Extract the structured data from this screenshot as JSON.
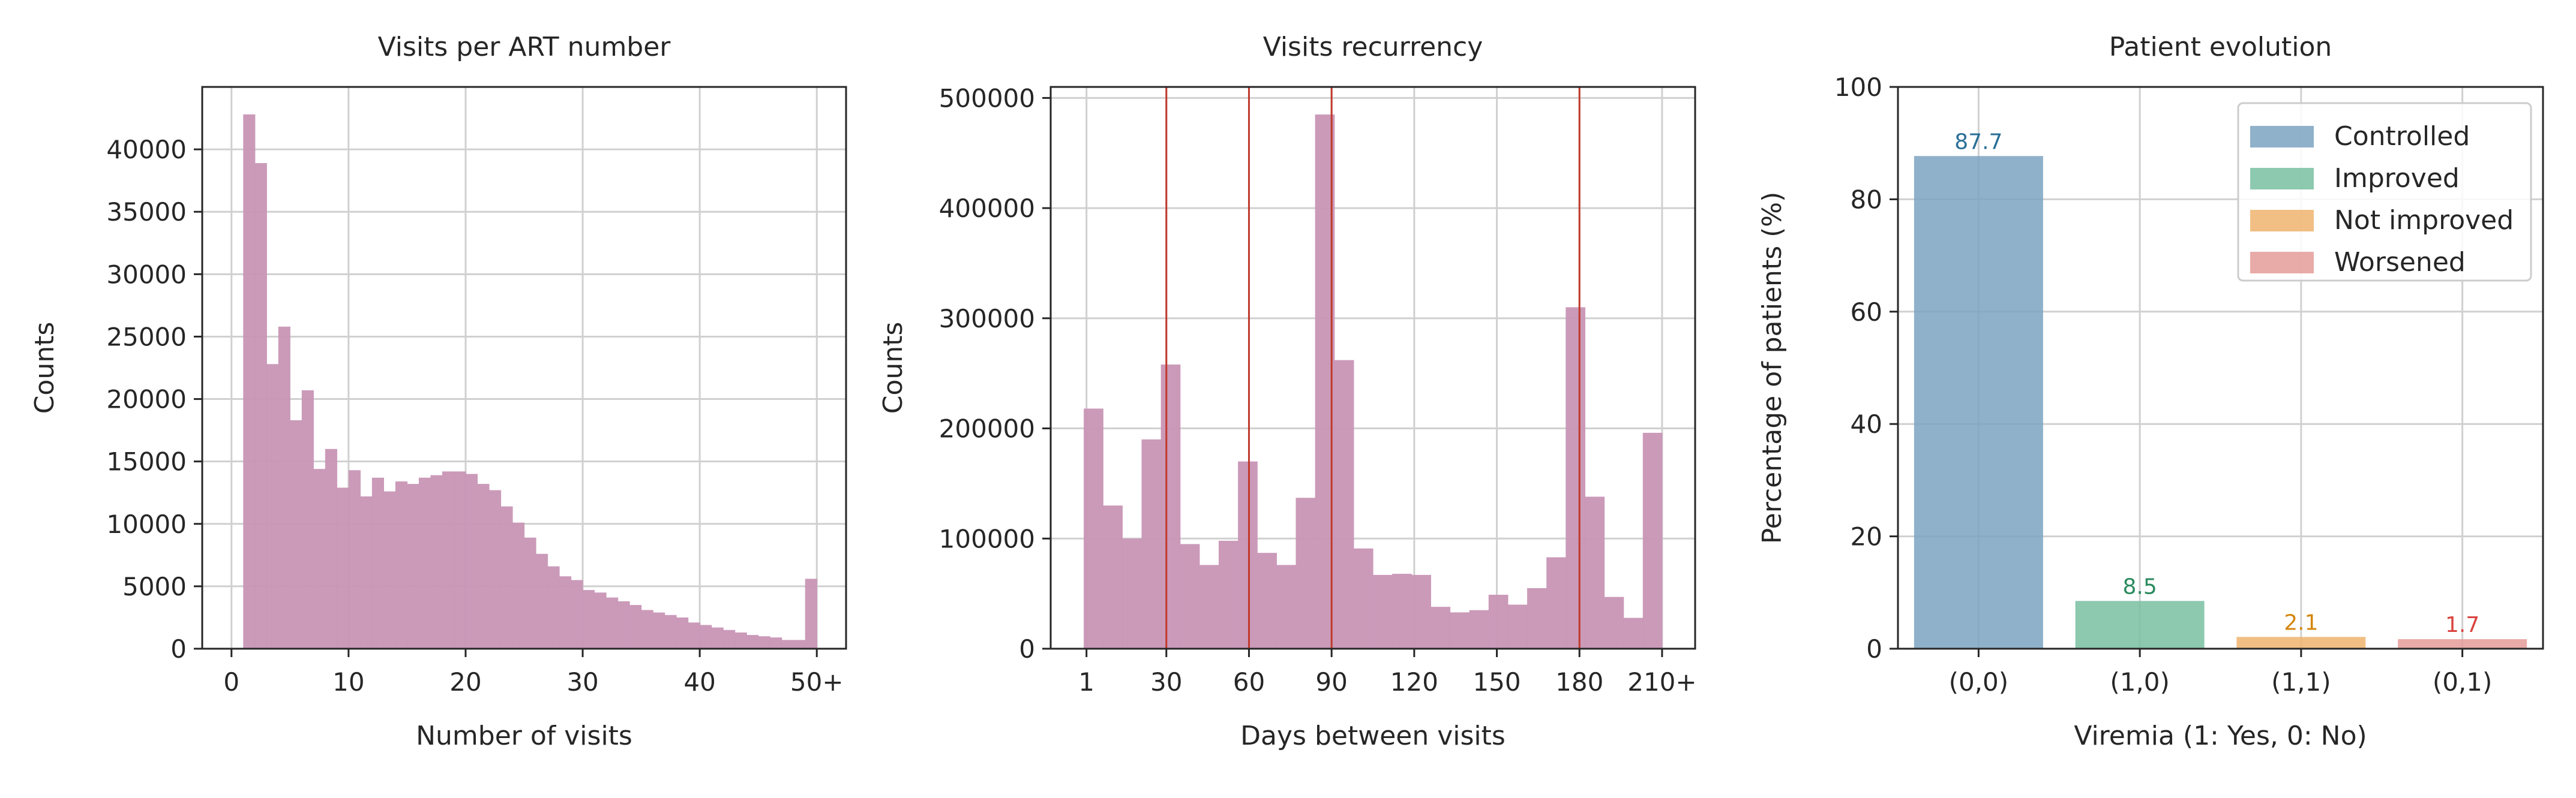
{
  "chart_data": [
    {
      "type": "bar",
      "title": "Visits per ART number",
      "xlabel": "Number of visits",
      "ylabel": "Counts",
      "xlim": [
        -2.5,
        52.5
      ],
      "ylim": [
        0,
        45000
      ],
      "xticks": [
        0,
        10,
        20,
        30,
        40,
        50
      ],
      "xtick_labels": [
        "0",
        "10",
        "20",
        "30",
        "40",
        "50+"
      ],
      "yticks": [
        0,
        5000,
        10000,
        15000,
        20000,
        25000,
        30000,
        35000,
        40000
      ],
      "grid": true,
      "bar_color": "#c895b5",
      "x_start": 1,
      "bin_width": 1,
      "values": [
        42800,
        38900,
        22800,
        25800,
        18300,
        20700,
        14400,
        16000,
        12900,
        14300,
        12200,
        13700,
        12600,
        13400,
        13200,
        13700,
        13900,
        14200,
        14200,
        14000,
        13200,
        12700,
        11400,
        10100,
        8900,
        7600,
        6600,
        5800,
        5500,
        4700,
        4500,
        4100,
        3800,
        3500,
        3100,
        2900,
        2700,
        2500,
        2100,
        1900,
        1700,
        1500,
        1300,
        1100,
        1000,
        900,
        700,
        700,
        5600
      ]
    },
    {
      "type": "bar",
      "title": "Visits recurrency",
      "xlabel": "Days between visits",
      "ylabel": "Counts",
      "xlim": [
        -12,
        222
      ],
      "ylim": [
        0,
        510000
      ],
      "xticks": [
        1,
        30,
        60,
        90,
        120,
        150,
        180,
        210
      ],
      "xtick_labels": [
        "1",
        "30",
        "60",
        "90",
        "120",
        "150",
        "180",
        "210+"
      ],
      "yticks": [
        0,
        100000,
        200000,
        300000,
        400000,
        500000
      ],
      "grid": true,
      "bar_color": "#c895b5",
      "vlines": [
        30,
        60,
        90,
        180
      ],
      "vline_color": "#c0392b",
      "x_start": 0,
      "bin_width": 7,
      "values": [
        218000,
        130000,
        100000,
        190000,
        258000,
        95000,
        76000,
        98000,
        170000,
        87000,
        76000,
        137000,
        485000,
        262000,
        91000,
        67000,
        68000,
        67000,
        38000,
        33000,
        35000,
        49000,
        40000,
        55000,
        83000,
        310000,
        138000,
        47000,
        28000,
        196000
      ]
    },
    {
      "type": "bar",
      "title": "Patient evolution",
      "xlabel": "Viremia (1: Yes, 0: No)",
      "ylabel": "Percentage of patients (%)",
      "ylim": [
        0,
        100
      ],
      "yticks": [
        0,
        20,
        40,
        60,
        80,
        100
      ],
      "grid": true,
      "legend": "top-right",
      "categories": [
        "(0,0)",
        "(1,0)",
        "(1,1)",
        "(0,1)"
      ],
      "series": [
        {
          "name": "Controlled",
          "values": [
            87.7,
            0,
            0,
            0
          ],
          "label": "87.7",
          "color": "#7ba3c1",
          "label_color": "#2a6f97"
        },
        {
          "name": "Improved",
          "values": [
            0,
            8.5,
            0,
            0
          ],
          "label": "8.5",
          "color": "#79bfa1",
          "label_color": "#2a8a5e"
        },
        {
          "name": "Not improved",
          "values": [
            0,
            0,
            2.1,
            0
          ],
          "label": "2.1",
          "color": "#eeb46f",
          "label_color": "#d4860c"
        },
        {
          "name": "Worsened",
          "values": [
            0,
            0,
            0,
            1.7
          ],
          "label": "1.7",
          "color": "#e59c99",
          "label_color": "#d9443f"
        }
      ]
    }
  ]
}
